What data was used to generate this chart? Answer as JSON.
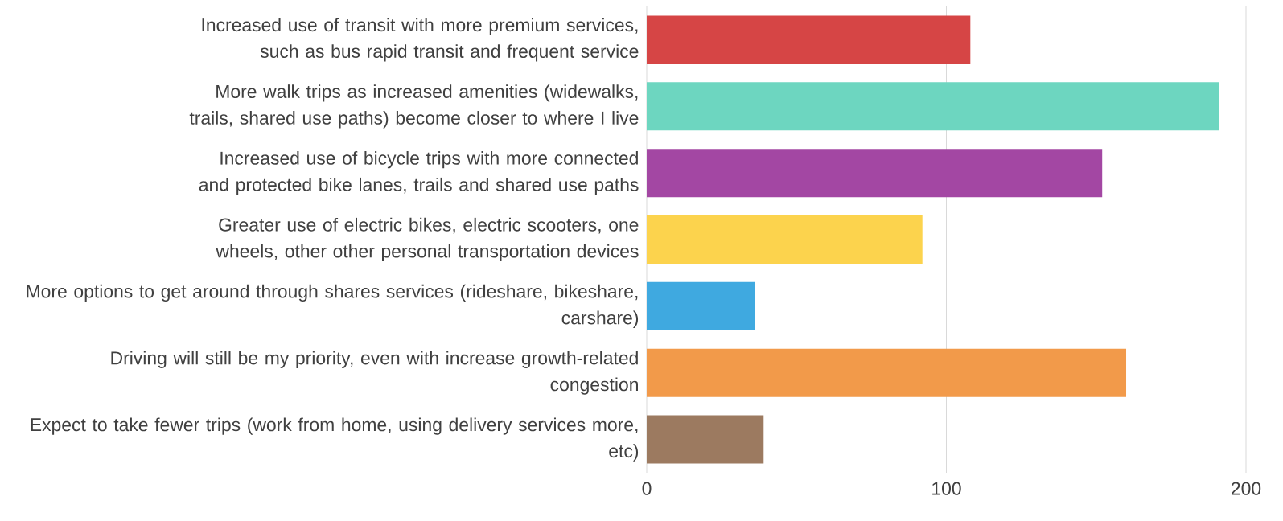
{
  "chart_data": {
    "type": "bar",
    "orientation": "horizontal",
    "categories": [
      "Increased use of transit with more premium services, such as bus rapid transit and frequent service",
      "More walk trips as increased amenities (widewalks, trails, shared use paths) become closer to where I live",
      "Increased use of bicycle trips with more connected and protected bike lanes, trails and shared use paths",
      "Greater use of electric bikes, electric scooters, one wheels, other other personal transportation devices",
      "More options to get around through shares services (rideshare, bikeshare, carshare)",
      "Driving will still be my priority, even with increase growth-related congestion",
      "Expect to take fewer trips (work from home, using delivery services more, etc)"
    ],
    "values": [
      108,
      191,
      152,
      92,
      36,
      160,
      39
    ],
    "colors": [
      "#d64545",
      "#6dd6c0",
      "#a347a3",
      "#fcd34d",
      "#3fa9e0",
      "#f29a4a",
      "#9c7a60"
    ],
    "xlim": [
      0,
      200
    ],
    "xticks": [
      0,
      100,
      200
    ],
    "grid": "x"
  }
}
